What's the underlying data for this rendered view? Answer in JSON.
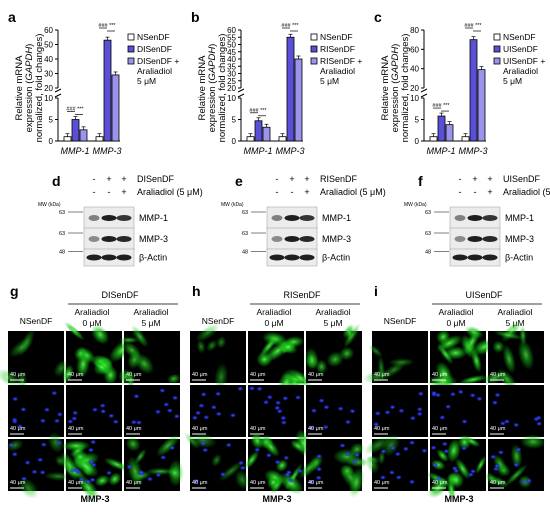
{
  "colors": {
    "nsen_fill": "#ffffff",
    "sen_fill": "#5a4fd6",
    "treated_fill": "#9b94ec",
    "axis": "#000000",
    "green": "#19c21a",
    "blue": "#1d2ad8",
    "band": "#141414"
  },
  "panels": {
    "letters": [
      "a",
      "b",
      "c",
      "d",
      "e",
      "f",
      "g",
      "h",
      "i"
    ],
    "y_axis_label_line1": "Relative mRNA",
    "y_axis_label_line2_prefix": "expression (",
    "y_axis_label_line2_italic": "GAPDH",
    "y_axis_label_line3": "normalized, fold changes)",
    "x_tick_labels": [
      "MMP-1",
      "MMP-3"
    ]
  },
  "chart_data": [
    {
      "type": "bar",
      "panel": "a",
      "categories": [
        "MMP-1",
        "MMP-3"
      ],
      "series": [
        {
          "name": "NSenDF",
          "values": [
            1,
            1
          ]
        },
        {
          "name": "DISenDF",
          "values": [
            5,
            53
          ]
        },
        {
          "name": "DISenDF + Araliadiol 5 μM",
          "values": [
            2.6,
            29
          ]
        }
      ],
      "yticks_lower": [
        0,
        5,
        10
      ],
      "yticks_upper": [
        20,
        30,
        40,
        50,
        60
      ],
      "ylim": [
        0,
        60
      ],
      "sig_left": "### ***",
      "sig_right": "### ***",
      "legend": [
        "NSenDF",
        "DISenDF",
        "DISenDF +",
        "Araliadiol",
        "5 μM"
      ]
    },
    {
      "type": "bar",
      "panel": "b",
      "categories": [
        "MMP-1",
        "MMP-3"
      ],
      "series": [
        {
          "name": "NSenDF",
          "values": [
            1,
            1
          ]
        },
        {
          "name": "RISenDF",
          "values": [
            4.7,
            55
          ]
        },
        {
          "name": "RISenDF + Araliadiol 5 μM",
          "values": [
            3.2,
            40
          ]
        }
      ],
      "yticks_lower": [
        0,
        5,
        10
      ],
      "yticks_upper": [
        20,
        25,
        30,
        35,
        40,
        45,
        50,
        55,
        60
      ],
      "ylim": [
        0,
        60
      ],
      "sig_left": "### ***",
      "sig_right": "### ***",
      "legend": [
        "NSenDF",
        "RISenDF",
        "RISenDF +",
        "Araliadiol",
        "5 μM"
      ]
    },
    {
      "type": "bar",
      "panel": "c",
      "categories": [
        "MMP-1",
        "MMP-3"
      ],
      "series": [
        {
          "name": "NSenDF",
          "values": [
            1,
            1
          ]
        },
        {
          "name": "UISenDF",
          "values": [
            5.8,
            70
          ]
        },
        {
          "name": "UISenDF + Araliadiol 5 μM",
          "values": [
            3.8,
            39
          ]
        }
      ],
      "yticks_lower": [
        0,
        5,
        10
      ],
      "yticks_upper": [
        20,
        40,
        60,
        80
      ],
      "ylim": [
        0,
        80
      ],
      "sig_left": "### ***",
      "sig_right": "### ***",
      "legend": [
        "NSenDF",
        "UISenDF",
        "UISenDF +",
        "Araliadiol",
        "5 μM"
      ]
    }
  ],
  "blots": [
    {
      "panel": "d",
      "treatment": "DISenDF",
      "row1_signs": [
        "-",
        "+",
        "+"
      ],
      "row2_signs": [
        "-",
        "-",
        "+"
      ],
      "row2_label": "Araliadiol (5 μM)",
      "mw_label": "MW (kDa)",
      "markers": [
        "63",
        "63",
        "48"
      ],
      "bands": [
        "MMP-1",
        "MMP-3",
        "β-Actin"
      ]
    },
    {
      "panel": "e",
      "treatment": "RISenDF",
      "row1_signs": [
        "-",
        "+",
        "+"
      ],
      "row2_signs": [
        "-",
        "-",
        "+"
      ],
      "row2_label": "Araliadiol (5 μM)",
      "mw_label": "MW (kDa)",
      "markers": [
        "63",
        "63",
        "48"
      ],
      "bands": [
        "MMP-1",
        "MMP-3",
        "β-Actin"
      ]
    },
    {
      "panel": "f",
      "treatment": "UISenDF",
      "row1_signs": [
        "-",
        "+",
        "+"
      ],
      "row2_signs": [
        "-",
        "-",
        "+"
      ],
      "row2_label": "Araliadiol (5 μM)",
      "mw_label": "MW (kDa)",
      "markers": [
        "63",
        "63",
        "48"
      ],
      "bands": [
        "MMP-1",
        "MMP-3",
        "β-Actin"
      ]
    }
  ],
  "micro": [
    {
      "panel": "g",
      "group": "DISenDF",
      "col1": "NSenDF",
      "col2": [
        "Araliadiol",
        "0 μM"
      ],
      "col3": [
        "Araliadiol",
        "5 μM"
      ],
      "scale": "40 μm",
      "caption": "MMP-3"
    },
    {
      "panel": "h",
      "group": "RISenDF",
      "col1": "NSenDF",
      "col2": [
        "Araliadiol",
        "0 μM"
      ],
      "col3": [
        "Araliadiol",
        "5 μM"
      ],
      "scale": "40 μm",
      "caption": "MMP-3"
    },
    {
      "panel": "i",
      "group": "UISenDF",
      "col1": "NSenDF",
      "col2": [
        "Araliadiol",
        "0 μM"
      ],
      "col3": [
        "Araliadiol",
        "5 μM"
      ],
      "scale": "40 μm",
      "caption": "MMP-3"
    }
  ]
}
